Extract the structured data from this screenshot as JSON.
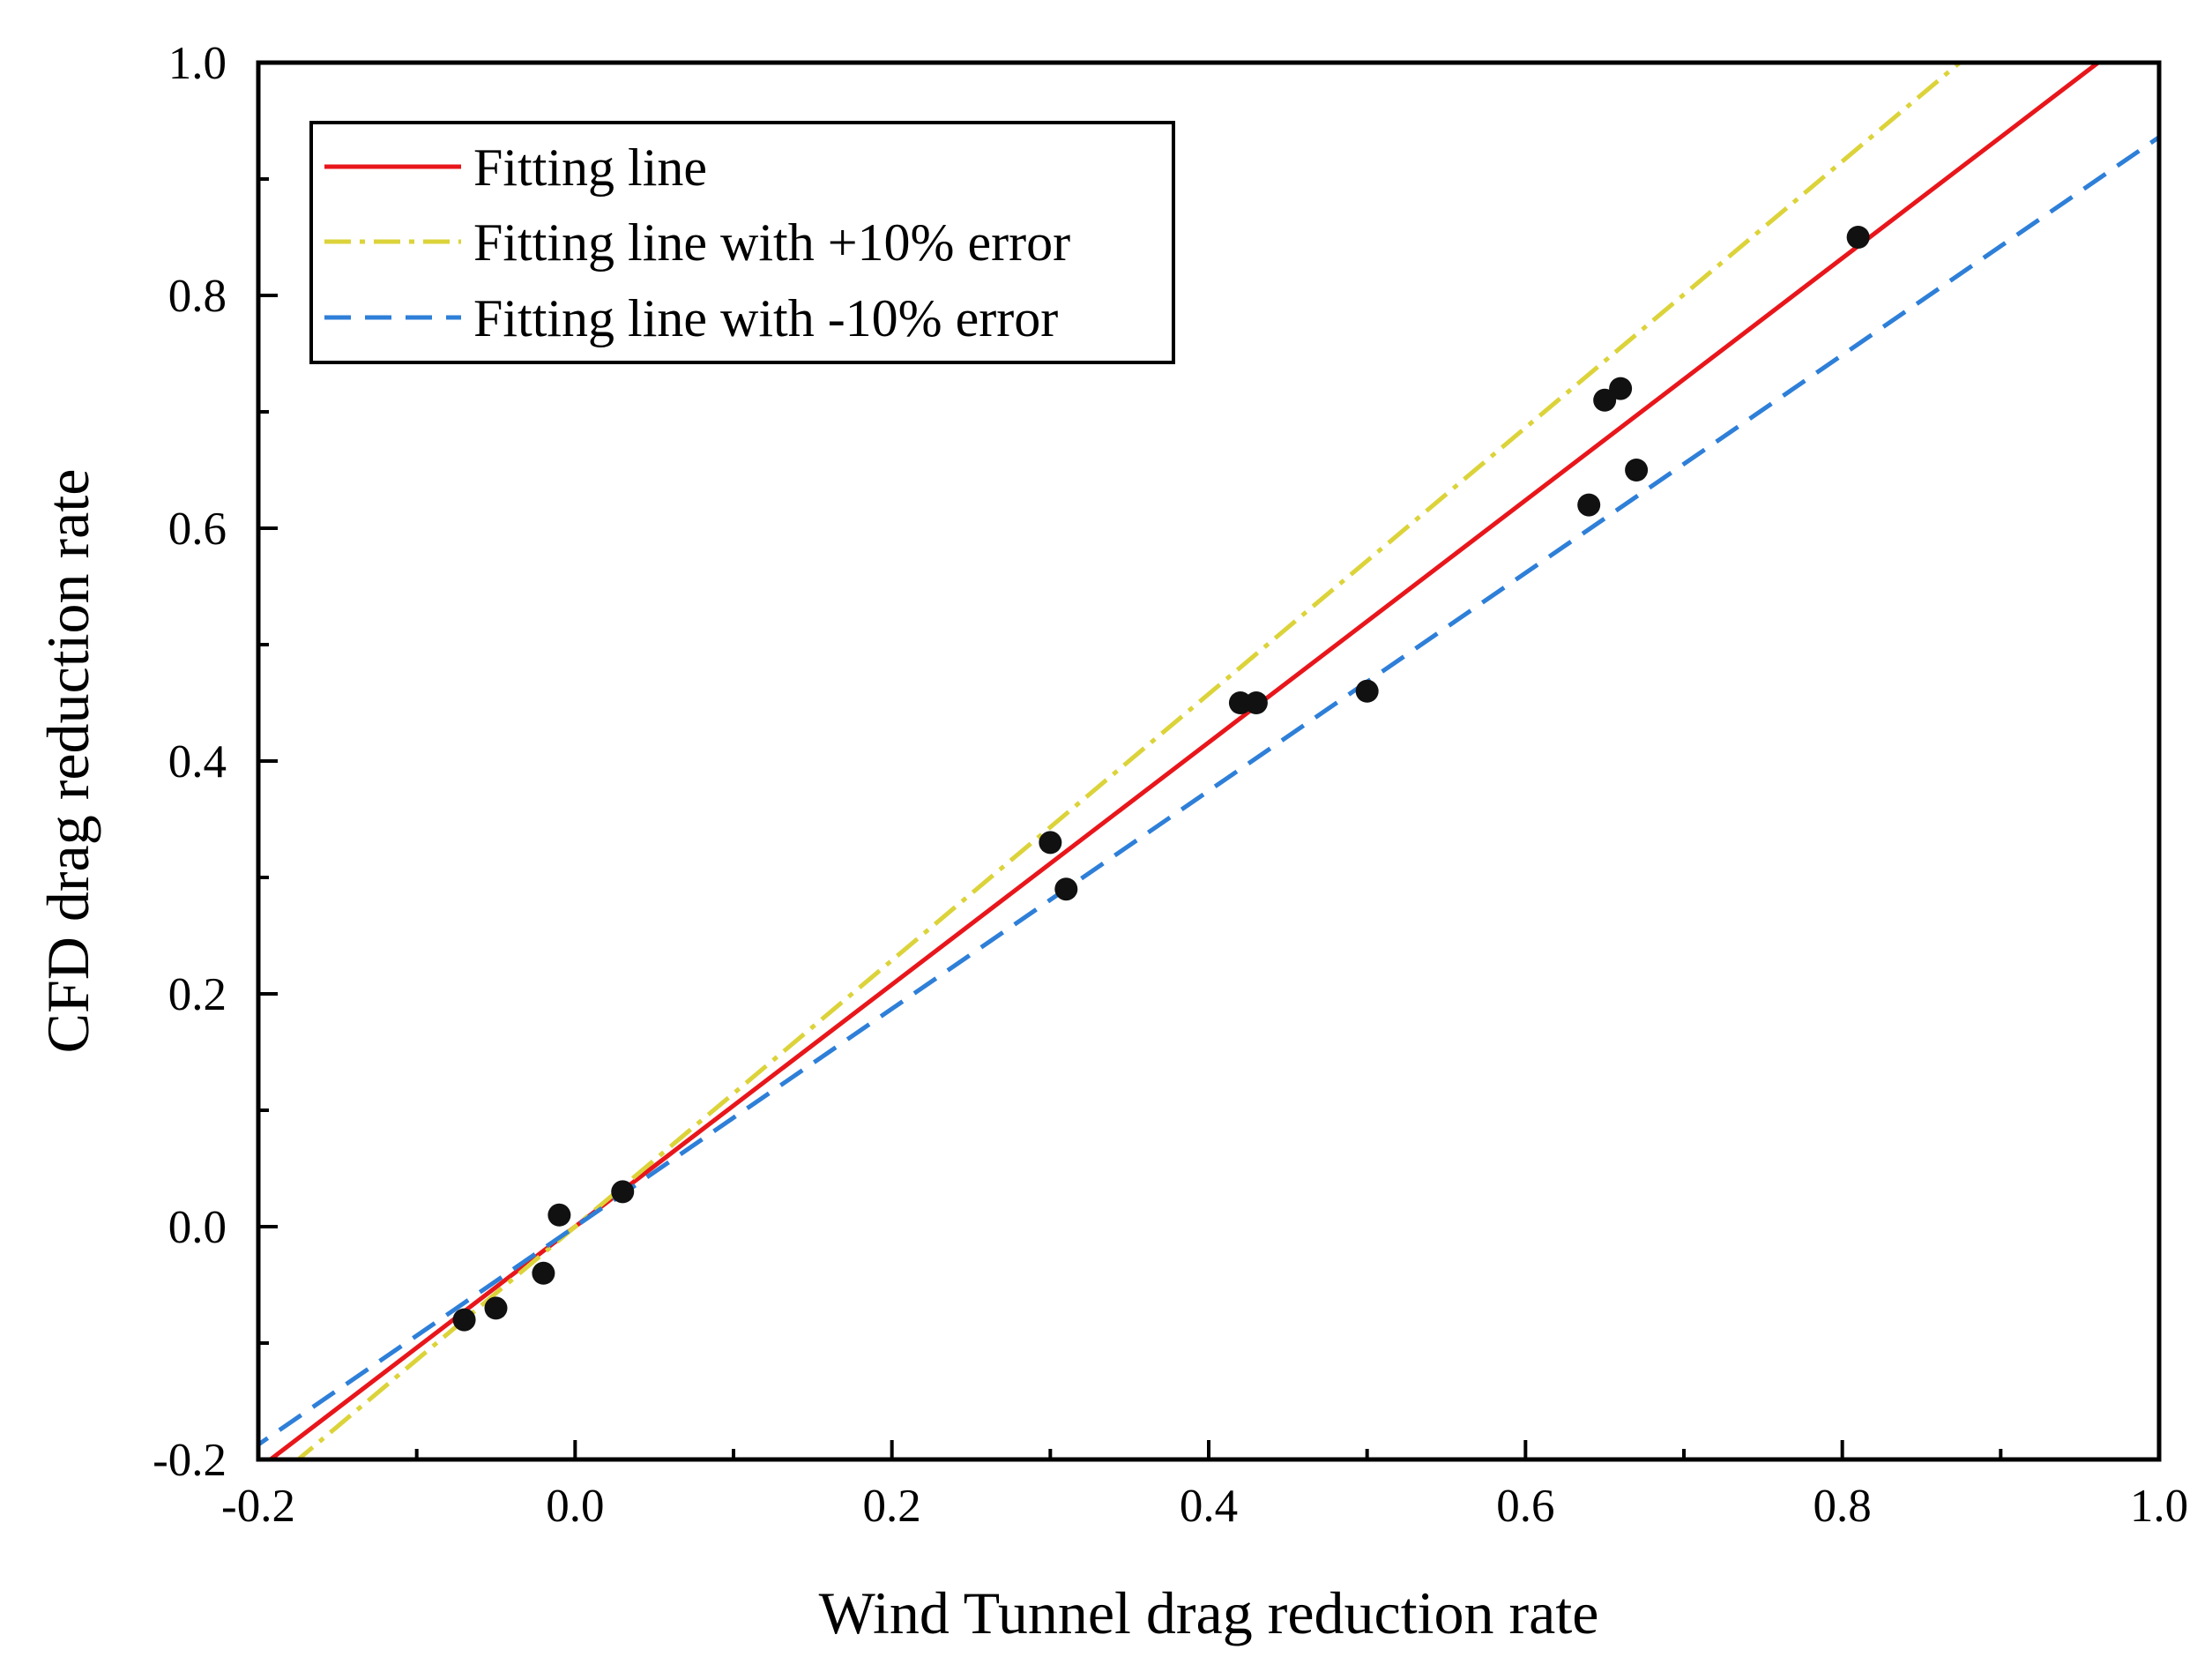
{
  "chart_data": {
    "type": "scatter",
    "xlabel": "Wind Tunnel drag reduction rate",
    "ylabel": "CFD drag reduction rate",
    "xlim": [
      -0.2,
      1.0
    ],
    "ylim": [
      -0.2,
      1.0
    ],
    "xticks": [
      "-0.2",
      "0.0",
      "0.2",
      "0.4",
      "0.6",
      "0.8",
      "1.0"
    ],
    "yticks": [
      "-0.2",
      "0.0",
      "0.2",
      "0.4",
      "0.6",
      "0.8",
      "1.0"
    ],
    "legend_position": "top-left",
    "grid": false,
    "points": {
      "name": "Data points",
      "color": "#111111",
      "x": [
        -0.07,
        -0.05,
        -0.02,
        -0.01,
        0.03,
        0.3,
        0.31,
        0.42,
        0.43,
        0.5,
        0.64,
        0.65,
        0.66,
        0.67,
        0.81
      ],
      "y": [
        -0.08,
        -0.07,
        -0.04,
        0.01,
        0.03,
        0.33,
        0.29,
        0.45,
        0.45,
        0.46,
        0.62,
        0.71,
        0.72,
        0.65,
        0.85
      ]
    },
    "lines": [
      {
        "name": "Fitting line",
        "slope": 1.04,
        "intercept": 0.0,
        "color": "#e8161b",
        "style": "solid"
      },
      {
        "name": "Fitting line with +10% error",
        "slope": 1.144,
        "intercept": 0.0,
        "color": "#dcd33a",
        "style": "dashdot"
      },
      {
        "name": "Fitting line with -10% error",
        "slope": 0.936,
        "intercept": 0.0,
        "color": "#2e7fd8",
        "style": "dashed"
      }
    ]
  }
}
